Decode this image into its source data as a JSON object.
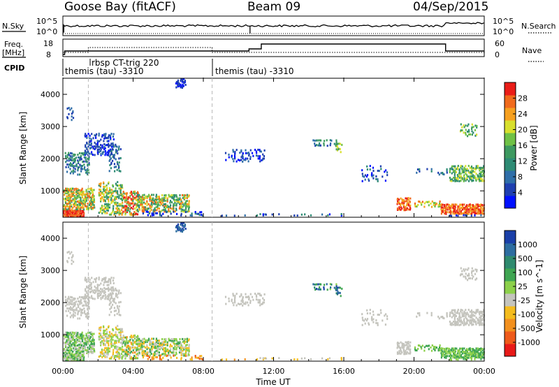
{
  "header": {
    "station": "Goose Bay (fitACF)",
    "beam": "Beam 09",
    "date": "04/Sep/2015"
  },
  "noise_panel": {
    "left_label": "N.Sky",
    "left_ticks": [
      "10^5",
      "10^0"
    ],
    "right_label": "N.Search",
    "right_ticks": [
      "10^5",
      "10^0"
    ]
  },
  "freq_panel": {
    "left_label_1": "Freq.",
    "left_label_2": "[MHz]",
    "left_ticks": [
      "18",
      "8"
    ],
    "right_label": "Nave",
    "right_ticks": [
      "60",
      "0"
    ]
  },
  "cpid_panel": {
    "label": "CPID",
    "entries": [
      {
        "text": "themis (tau) -3310",
        "start": 0.0
      },
      {
        "text": "rbsp CT-trig 220",
        "start": 1.45
      },
      {
        "text": "themis (tau) -3310",
        "start": 8.5
      }
    ]
  },
  "chart_data": [
    {
      "type": "heatmap",
      "quantity": "Power",
      "ylabel": "Slant Range [km]",
      "xlim": [
        0,
        24
      ],
      "ylim": [
        180,
        4500
      ],
      "yticks": [
        1000,
        2000,
        3000,
        4000
      ],
      "colorbar": {
        "label": "Power [dB]",
        "ticks": [
          "4",
          "8",
          "12",
          "16",
          "20",
          "24",
          "28"
        ],
        "colors": [
          "#0010ff",
          "#1f3fb0",
          "#2f6ea8",
          "#2e8b74",
          "#3d9960",
          "#6fc146",
          "#d8df2d",
          "#f6a01f",
          "#f06a1c",
          "#ea1d18"
        ]
      }
    },
    {
      "type": "heatmap",
      "quantity": "Velocity",
      "ylabel": "Slant Range [km]",
      "xlabel": "Time UT",
      "xlim": [
        0,
        24
      ],
      "ylim": [
        180,
        4500
      ],
      "yticks": [
        1000,
        2000,
        3000,
        4000
      ],
      "xticks": [
        "00:00",
        "04:00",
        "08:00",
        "12:00",
        "16:00",
        "20:00",
        "00:00"
      ],
      "colorbar": {
        "label": "Velocity [m s^-1]",
        "ticks": [
          "1000",
          "500",
          "100",
          "25",
          "-25",
          "-100",
          "-500",
          "-1000"
        ],
        "colors": [
          "#1a3fa8",
          "#2d6da0",
          "#2e8a6e",
          "#3fa552",
          "#8cd04a",
          "#c4c4bd",
          "#f4bc1e",
          "#f2901e",
          "#ee5a1a",
          "#e81a18"
        ]
      }
    }
  ]
}
